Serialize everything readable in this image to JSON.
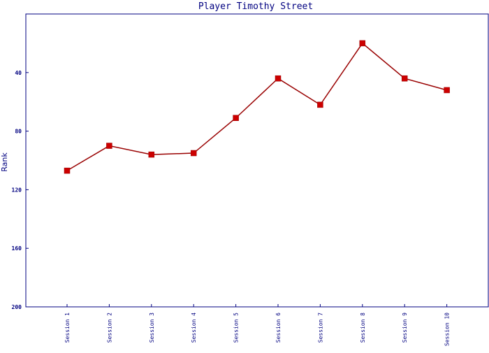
{
  "chart_data": {
    "type": "line",
    "title": "Player Timothy Street",
    "ylabel": "Rank",
    "xlabel": "",
    "categories": [
      "Session 1",
      "Session 2",
      "Session 3",
      "Session 4",
      "Session 5",
      "Session 6",
      "Session 7",
      "Session 8",
      "Session 9",
      "Session 10"
    ],
    "series": [
      {
        "values": [
          107,
          90,
          96,
          95,
          71,
          44,
          62,
          20,
          44,
          52
        ]
      }
    ],
    "ylim": [
      0,
      200
    ],
    "y_inverted": true,
    "yticks": [
      40,
      80,
      120,
      160,
      200
    ],
    "grid": false,
    "colors": {
      "axes": "#000080",
      "line": "#990000",
      "marker": "#cc0000"
    }
  }
}
